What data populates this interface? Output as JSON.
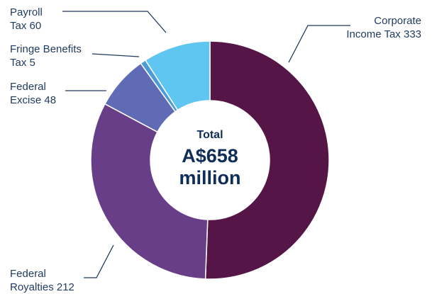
{
  "chart_data": {
    "type": "pie",
    "donut": true,
    "center": {
      "line1": "Total",
      "line2": "A$658",
      "line3": "million"
    },
    "slices": [
      {
        "label_line1": "Corporate",
        "label_line2": "Income Tax 333",
        "value": 333,
        "color": "#561547"
      },
      {
        "label_line1": "Federal",
        "label_line2": "Royalties 212",
        "value": 212,
        "color": "#693e89"
      },
      {
        "label_line1": "Federal",
        "label_line2": "Excise 48",
        "value": 48,
        "color": "#5f6bb4"
      },
      {
        "label_line1": "Fringe Benefits",
        "label_line2": "Tax 5",
        "value": 5,
        "color": "#4a9bd6"
      },
      {
        "label_line1": "Payroll",
        "label_line2": "Tax 60",
        "value": 60,
        "color": "#5ec6f1"
      }
    ],
    "leader_color": "#1f3a5f"
  }
}
